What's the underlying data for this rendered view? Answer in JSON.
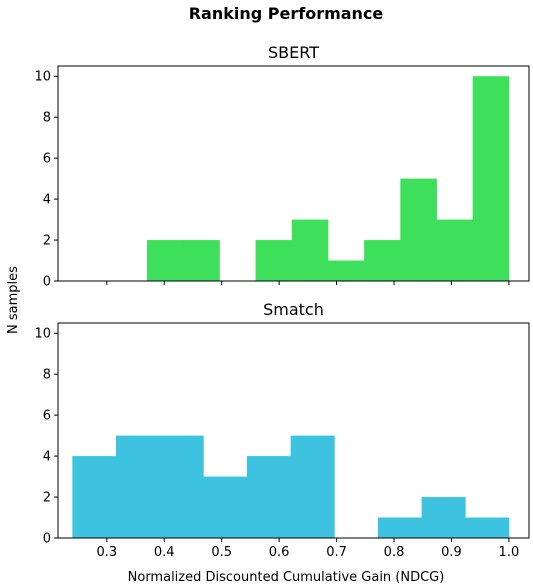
{
  "chart_data": {
    "type": "histogram",
    "title": "Ranking Performance",
    "xlabel": "Normalized Discounted Cumulative Gain (NDCG)",
    "ylabel": "N samples",
    "xlim": [
      0.215,
      1.035
    ],
    "ylim": [
      0,
      10.5
    ],
    "shared_x": true,
    "shared_y": true,
    "x_ticks": [
      "0.3",
      "0.4",
      "0.5",
      "0.6",
      "0.7",
      "0.8",
      "0.9",
      "1.0"
    ],
    "y_ticks": [
      "0",
      "2",
      "4",
      "6",
      "8",
      "10"
    ],
    "grid": false,
    "panels": [
      {
        "title": "SBERT",
        "color": "#3ddf5b",
        "bin_edges": [
          0.307,
          0.37,
          0.433,
          0.496,
          0.559,
          0.622,
          0.685,
          0.748,
          0.811,
          0.874,
          0.937,
          1.0
        ],
        "counts": [
          0,
          2,
          2,
          0,
          2,
          3,
          1,
          2,
          5,
          3,
          10
        ]
      },
      {
        "title": "Smatch",
        "color": "#3dc3df",
        "bin_edges": [
          0.24,
          0.316,
          0.392,
          0.468,
          0.544,
          0.62,
          0.696,
          0.772,
          0.848,
          0.924,
          1.0
        ],
        "counts": [
          4,
          5,
          5,
          3,
          4,
          5,
          0,
          1,
          2,
          1
        ]
      }
    ]
  }
}
